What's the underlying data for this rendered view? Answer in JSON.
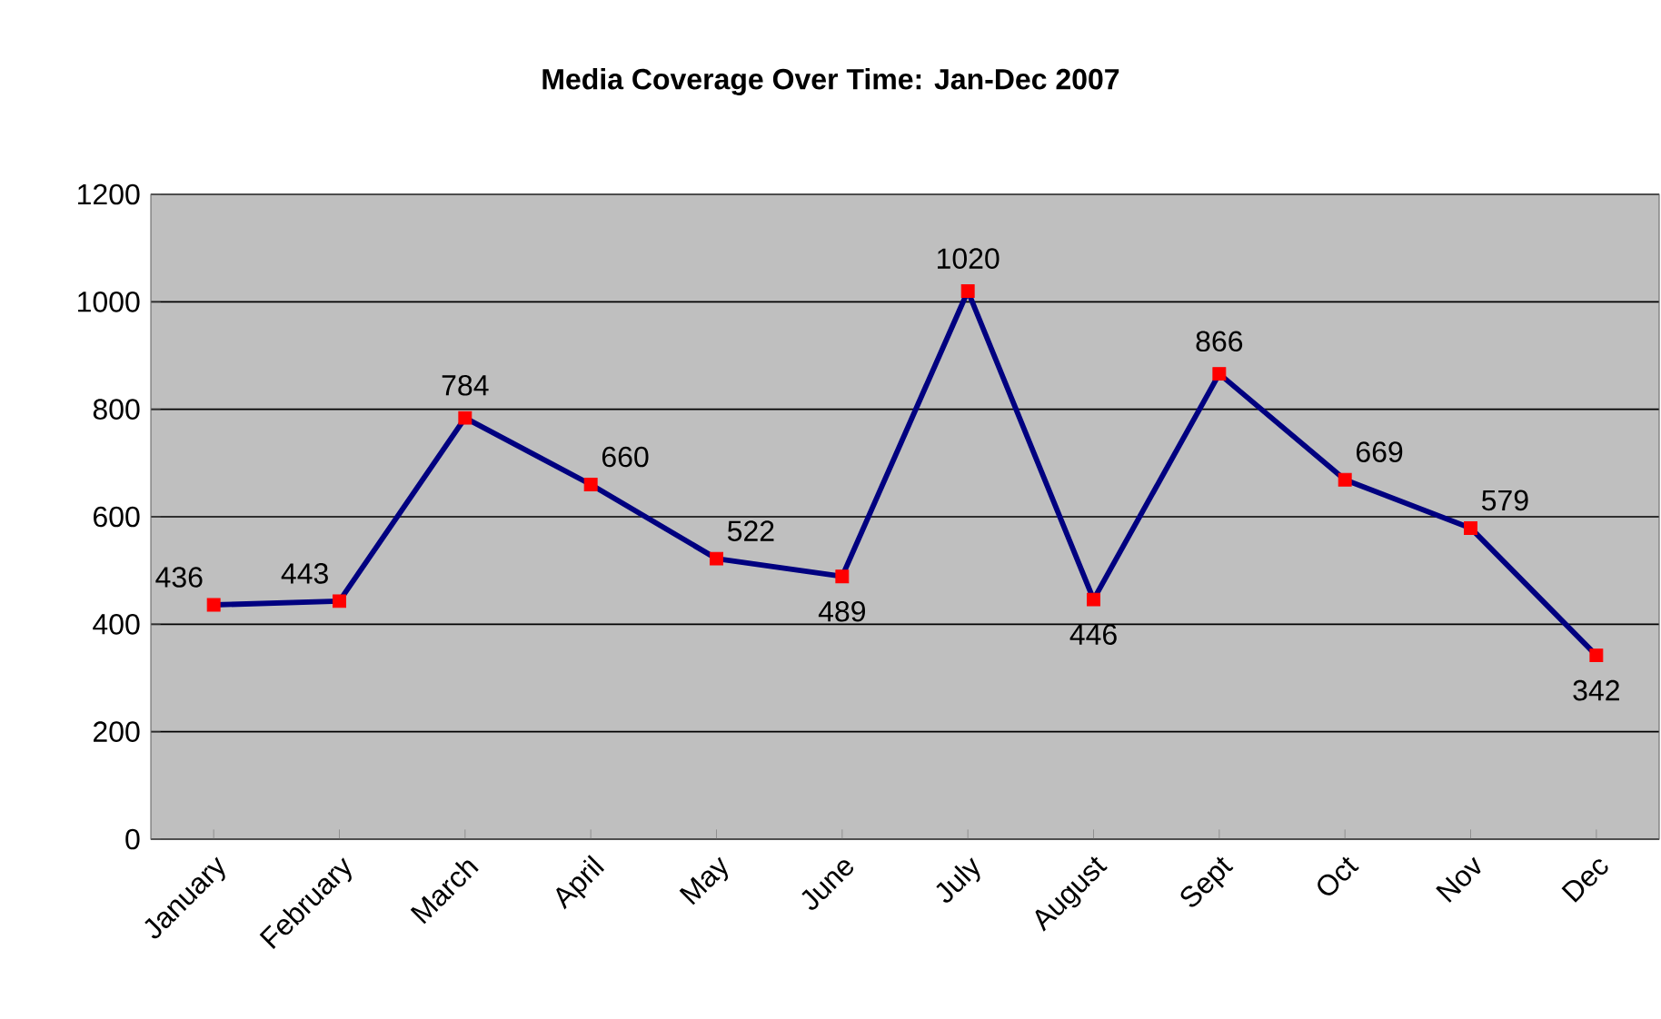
{
  "chart_data": {
    "type": "line",
    "title": "Media Coverage Over Time: Jan-Dec 2007",
    "categories": [
      "January",
      "February",
      "March",
      "April",
      "May",
      "June",
      "July",
      "August",
      "Sept",
      "Oct",
      "Nov",
      "Dec"
    ],
    "series": [
      {
        "color": "#000080",
        "colors": [
          "#ff0000",
          "#ff0000",
          "#ff0000",
          "#ff0000",
          "#ff0000",
          "#ff0000",
          "#ff0000",
          "#ff0000",
          "#ff0000",
          "#ff0000",
          "#ff0000",
          "#ff0000"
        ],
        "values": [
          436,
          443,
          784,
          660,
          522,
          489,
          1020,
          446,
          866,
          669,
          579,
          342
        ]
      }
    ],
    "ylim": [
      0,
      1200
    ],
    "yticks": [
      0,
      200,
      400,
      600,
      800,
      1000,
      1200
    ],
    "grid": "y",
    "marker": "square",
    "line_style": "solid",
    "data_labels": true
  }
}
